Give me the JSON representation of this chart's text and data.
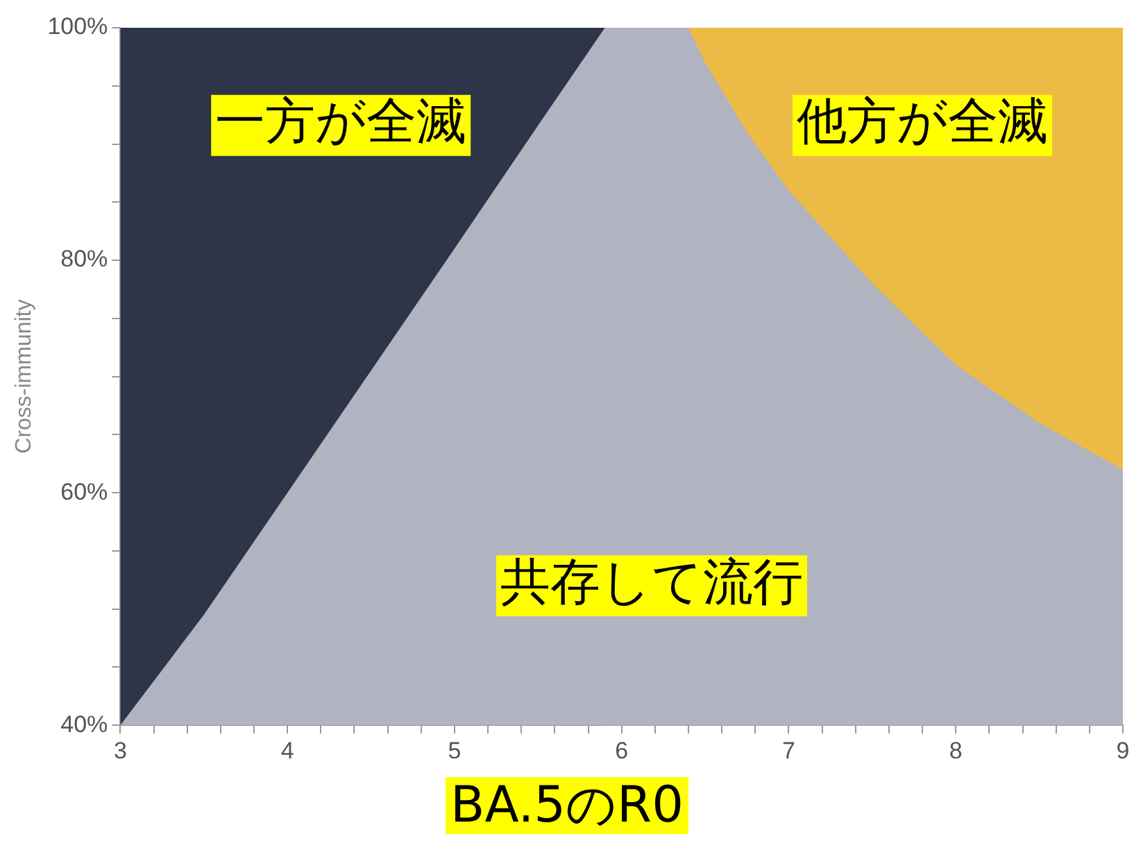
{
  "chart_data": {
    "type": "area",
    "xlabel": "BA.5のR0",
    "ylabel": "Cross-immunity",
    "series": [
      {
        "color": "#b1b3c0",
        "x": [
          3,
          3.5,
          4,
          4.5,
          5,
          5.5,
          5.9,
          6.4,
          6.5,
          6.75,
          7,
          7.5,
          8,
          8.5,
          9
        ],
        "values": [
          40,
          49.5,
          60,
          70.5,
          81,
          91.6,
          100,
          100,
          97,
          91,
          86,
          78,
          71,
          66,
          62
        ]
      },
      {
        "color": "#2e3549",
        "x": [
          3,
          5.9
        ],
        "values": [
          100,
          100
        ]
      },
      {
        "color": "#ecbb45",
        "x": [
          6.4,
          9
        ],
        "values": [
          100,
          100
        ]
      }
    ],
    "xlim": [
      3,
      9
    ],
    "ylim": [
      40,
      100
    ],
    "xticks": [
      3,
      {
        "value": 3.2,
        "label": null
      },
      {
        "value": 3.4,
        "label": null
      },
      {
        "value": 3.6,
        "label": null
      },
      {
        "value": 3.8,
        "label": null
      },
      4,
      {
        "value": 4.2,
        "label": null
      },
      {
        "value": 4.4,
        "label": null
      },
      {
        "value": 4.6,
        "label": null
      },
      {
        "value": 4.8,
        "label": null
      },
      5,
      {
        "value": 5.2,
        "label": null
      },
      {
        "value": 5.4,
        "label": null
      },
      {
        "value": 5.6,
        "label": null
      },
      {
        "value": 5.8,
        "label": null
      },
      6,
      {
        "value": 6.2,
        "label": null
      },
      {
        "value": 6.4,
        "label": null
      },
      {
        "value": 6.6,
        "label": null
      },
      {
        "value": 6.8,
        "label": null
      },
      7,
      {
        "value": 7.2,
        "label": null
      },
      {
        "value": 7.4,
        "label": null
      },
      {
        "value": 7.6,
        "label": null
      },
      {
        "value": 7.8,
        "label": null
      },
      8,
      {
        "value": 8.2,
        "label": null
      },
      {
        "value": 8.4,
        "label": null
      },
      {
        "value": 8.6,
        "label": null
      },
      {
        "value": 8.8,
        "label": null
      },
      9
    ],
    "yticks": [
      {
        "value": 40,
        "label": "40%"
      },
      {
        "value": 45,
        "label": null
      },
      {
        "value": 50,
        "label": null
      },
      {
        "value": 55,
        "label": null
      },
      {
        "value": 60,
        "label": "60%"
      },
      {
        "value": 65,
        "label": null
      },
      {
        "value": 70,
        "label": null
      },
      {
        "value": 75,
        "label": null
      },
      {
        "value": 80,
        "label": "80%"
      },
      {
        "value": 85,
        "label": null
      },
      {
        "value": 90,
        "label": null
      },
      {
        "value": 95,
        "label": null
      },
      {
        "value": 100,
        "label": "100%"
      }
    ],
    "annotations": [
      "一方が全滅",
      "他方が全滅",
      "共存して流行"
    ],
    "grid": false,
    "legend": false
  }
}
